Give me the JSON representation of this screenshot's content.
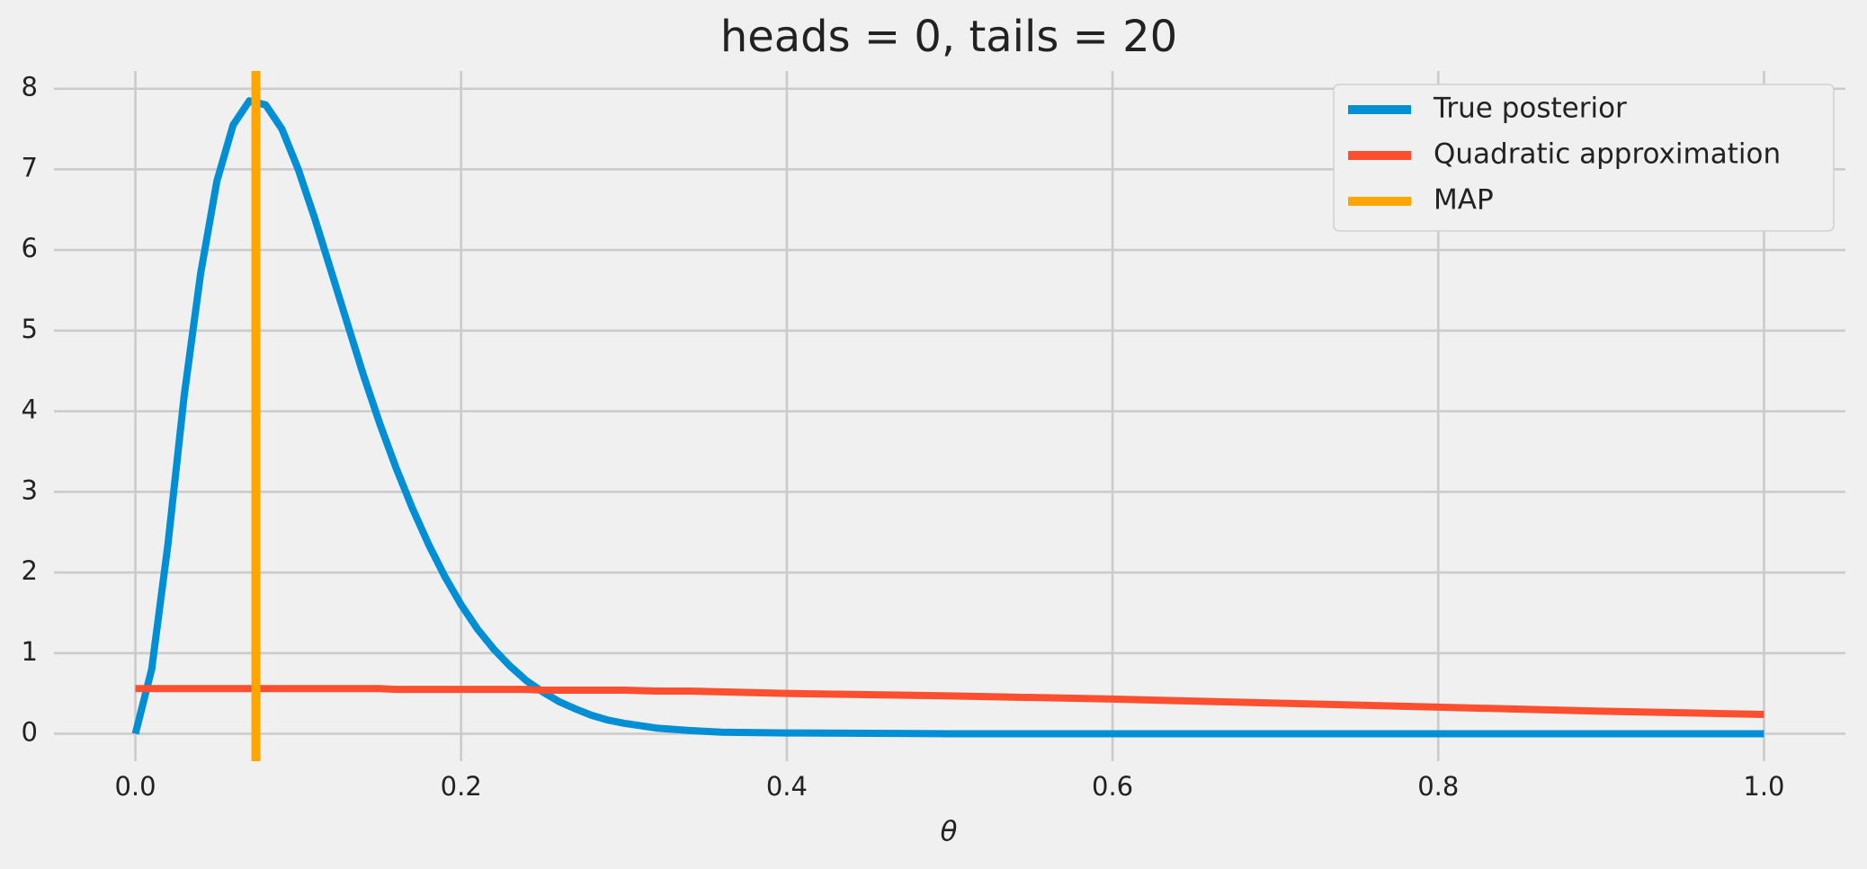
{
  "chart_data": {
    "type": "line",
    "title": "heads = 0, tails = 20",
    "x_label": "θ",
    "x": [
      0,
      0.01,
      0.02,
      0.03,
      0.04,
      0.05,
      0.06,
      0.07,
      0.08,
      0.09,
      0.1,
      0.11,
      0.12,
      0.13,
      0.14,
      0.15,
      0.16,
      0.17,
      0.18,
      0.19,
      0.2,
      0.21,
      0.22,
      0.23,
      0.24,
      0.25,
      0.26,
      0.27,
      0.28,
      0.29,
      0.3,
      0.32,
      0.34,
      0.36,
      0.4,
      0.5,
      0.6,
      0.7,
      0.8,
      0.9,
      1.0
    ],
    "series": [
      {
        "name": "True posterior",
        "color": "#008fd5",
        "values": [
          0,
          0.8,
          2.35,
          4.2,
          5.7,
          6.85,
          7.55,
          7.85,
          7.8,
          7.5,
          7.0,
          6.4,
          5.75,
          5.1,
          4.45,
          3.85,
          3.3,
          2.8,
          2.35,
          1.95,
          1.6,
          1.3,
          1.05,
          0.84,
          0.66,
          0.52,
          0.4,
          0.31,
          0.23,
          0.17,
          0.13,
          0.07,
          0.04,
          0.02,
          0.01,
          0,
          0,
          0,
          0,
          0,
          0
        ]
      },
      {
        "name": "Quadratic approximation",
        "color": "#fc4f30",
        "values": [
          0.56,
          0.56,
          0.56,
          0.56,
          0.56,
          0.56,
          0.56,
          0.56,
          0.56,
          0.56,
          0.56,
          0.56,
          0.56,
          0.56,
          0.56,
          0.56,
          0.55,
          0.55,
          0.55,
          0.55,
          0.55,
          0.55,
          0.55,
          0.55,
          0.55,
          0.54,
          0.54,
          0.54,
          0.54,
          0.54,
          0.54,
          0.53,
          0.53,
          0.52,
          0.5,
          0.47,
          0.43,
          0.38,
          0.33,
          0.28,
          0.24
        ]
      },
      {
        "name": "MAP",
        "color": "#ffa500",
        "type": "vline",
        "x": 0.074
      }
    ],
    "xlim": [
      -0.05,
      1.05
    ],
    "xticks": [
      {
        "value": 0,
        "label": "0.0"
      },
      0.2,
      0.4,
      0.6,
      0.8,
      {
        "value": 1,
        "label": "1.0"
      }
    ],
    "ylim": [
      -0.34,
      8.22
    ],
    "yticks": [
      0,
      1,
      2,
      3,
      4,
      5,
      6,
      7,
      8
    ],
    "grid": true,
    "legend": "upper right"
  }
}
